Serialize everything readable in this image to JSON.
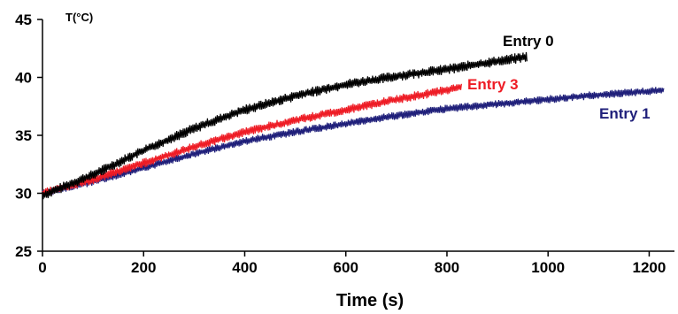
{
  "chart_data": {
    "type": "line",
    "title": "",
    "xlabel": "Time (s)",
    "ylabel": "T(°C)",
    "xlim": [
      0,
      1250
    ],
    "ylim": [
      25,
      45
    ],
    "xticks": [
      0,
      200,
      400,
      600,
      800,
      1000,
      1200
    ],
    "yticks": [
      25,
      30,
      35,
      40,
      45
    ],
    "grid": false,
    "legend": "inline labels",
    "series": [
      {
        "name": "Entry 0",
        "color": "#000000",
        "x": [
          0,
          50,
          100,
          200,
          300,
          400,
          500,
          600,
          700,
          800,
          900,
          960
        ],
        "y": [
          29.8,
          30.7,
          31.6,
          33.7,
          35.6,
          37.2,
          38.4,
          39.4,
          40.1,
          40.7,
          41.4,
          41.8
        ]
      },
      {
        "name": "Entry 3",
        "color": "#ee1c25",
        "x": [
          0,
          50,
          100,
          200,
          300,
          400,
          500,
          600,
          700,
          800,
          830
        ],
        "y": [
          30.0,
          30.6,
          31.2,
          32.6,
          34.0,
          35.3,
          36.3,
          37.2,
          38.1,
          38.9,
          39.2
        ]
      },
      {
        "name": "Entry 1",
        "color": "#1f1f7a",
        "x": [
          0,
          50,
          100,
          200,
          300,
          400,
          500,
          600,
          700,
          800,
          900,
          1000,
          1100,
          1230
        ],
        "y": [
          30.0,
          30.5,
          31.0,
          32.2,
          33.4,
          34.5,
          35.3,
          36.0,
          36.7,
          37.3,
          37.7,
          38.1,
          38.5,
          38.9
        ]
      }
    ]
  }
}
